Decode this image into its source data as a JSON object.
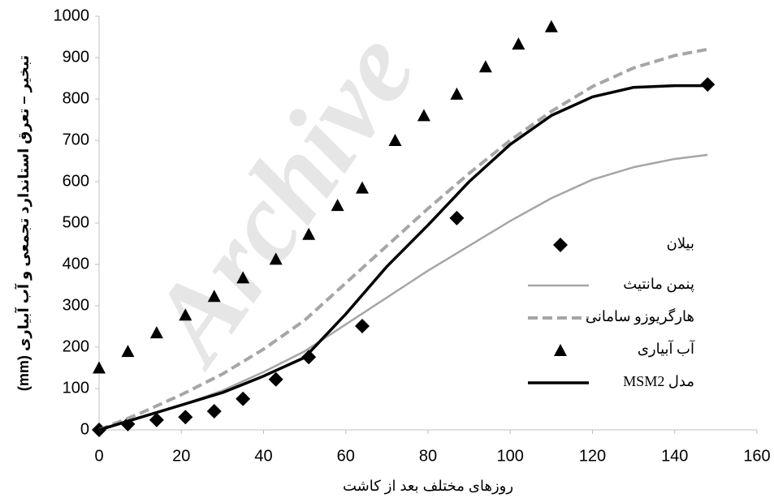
{
  "chart_data": {
    "type": "scatter-line",
    "watermark": "Archive",
    "x_label": "روزهای مختلف بعد از کاشت",
    "y_label": "تبخیر – تعرق استاندارد تجمعی و آب آبیاری (mm)",
    "xlim": [
      0,
      160
    ],
    "xticks": [
      0,
      20,
      40,
      60,
      80,
      100,
      120,
      140,
      160
    ],
    "ylim": [
      0,
      1000
    ],
    "yticks": [
      0,
      100,
      200,
      300,
      400,
      500,
      600,
      700,
      800,
      900,
      1000
    ],
    "grid": false,
    "legend": "right",
    "series": [
      {
        "name": "بیلان",
        "color": "#000000",
        "style": "diamond",
        "x": [
          0,
          7,
          14,
          21,
          28,
          35,
          43,
          51,
          64,
          87,
          148
        ],
        "values": [
          0,
          14,
          24,
          31,
          45,
          75,
          122,
          176,
          251,
          512,
          835
        ]
      },
      {
        "name": "پنمن مانتیث",
        "color": "#a6a6a6",
        "style": "solid",
        "x": [
          0,
          10,
          20,
          30,
          40,
          50,
          60,
          70,
          80,
          90,
          100,
          110,
          120,
          130,
          140,
          148
        ],
        "values": [
          0,
          30,
          60,
          95,
          140,
          190,
          255,
          320,
          385,
          445,
          505,
          560,
          605,
          635,
          655,
          665
        ]
      },
      {
        "name": "هارگریوزو سامانی",
        "color": "#a6a6a6",
        "style": "dashed",
        "x": [
          0,
          10,
          20,
          30,
          40,
          50,
          60,
          70,
          80,
          90,
          100,
          110,
          120,
          130,
          140,
          148
        ],
        "values": [
          0,
          40,
          85,
          135,
          195,
          265,
          355,
          445,
          535,
          620,
          700,
          770,
          830,
          875,
          905,
          920
        ]
      },
      {
        "name": "آب آبیاری",
        "color": "#000000",
        "style": "triangle",
        "x": [
          0,
          7,
          14,
          21,
          28,
          35,
          43,
          51,
          58,
          64,
          72,
          79,
          87,
          94,
          102,
          110
        ],
        "values": [
          150,
          190,
          235,
          278,
          323,
          368,
          413,
          473,
          543,
          585,
          700,
          760,
          812,
          878,
          933,
          975
        ]
      },
      {
        "name": "مدل MSM2",
        "color": "#000000",
        "style": "solid-thick",
        "x": [
          0,
          10,
          20,
          30,
          40,
          50,
          60,
          70,
          80,
          90,
          100,
          110,
          120,
          130,
          140,
          148
        ],
        "values": [
          0,
          30,
          60,
          90,
          130,
          175,
          280,
          395,
          495,
          600,
          690,
          760,
          805,
          828,
          832,
          832
        ]
      }
    ]
  }
}
